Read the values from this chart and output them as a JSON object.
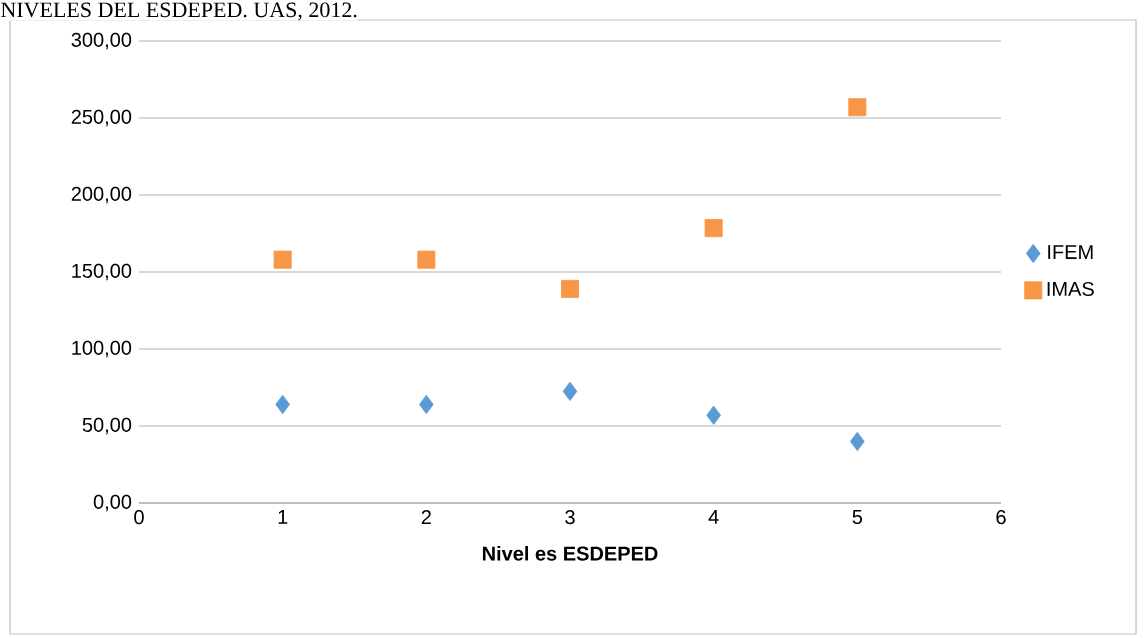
{
  "chart_data": {
    "type": "scatter",
    "title": "NIVELES DEL ESDEPED. UAS, 2012.",
    "xlabel": "Nivel es ESDEPED",
    "x": [
      1,
      2,
      3,
      4,
      5
    ],
    "series": [
      {
        "name": "IFEM",
        "color": "#5b9bd5",
        "marker": "diamond",
        "values": [
          64,
          64,
          72.5,
          57,
          40
        ]
      },
      {
        "name": "IMAS",
        "color": "#f79646",
        "marker": "square",
        "values": [
          158,
          158,
          139,
          178.5,
          257
        ]
      }
    ],
    "xlim": [
      0,
      6
    ],
    "xticks": [
      0,
      1,
      2,
      3,
      4,
      5,
      6
    ],
    "ylim": [
      0,
      300
    ],
    "yticks": [
      {
        "value": 0,
        "label": "0,00"
      },
      {
        "value": 50,
        "label": "50,00"
      },
      {
        "value": 100,
        "label": "100,00"
      },
      {
        "value": 150,
        "label": "150,00"
      },
      {
        "value": 200,
        "label": "200,00"
      },
      {
        "value": 250,
        "label": "250,00"
      },
      {
        "value": 300,
        "label": "300,00"
      }
    ],
    "grid": "y",
    "legend": "right"
  }
}
